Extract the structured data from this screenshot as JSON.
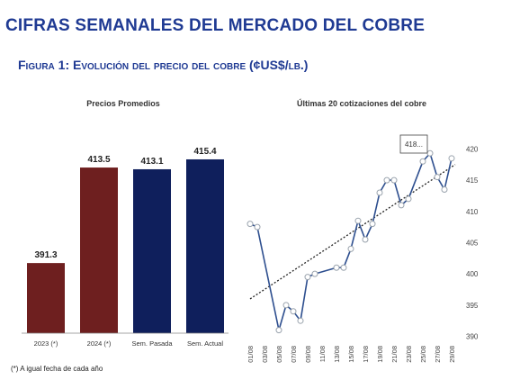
{
  "header": {
    "title": "CIFRAS SEMANALES DEL MERCADO DEL COBRE",
    "figure_caption": "Figura 1: Evolución del precio del cobre (¢US$/lb.)"
  },
  "colors": {
    "title_blue": "#1f3a93",
    "bar_red": "#6e1f1f",
    "bar_navy": "#0f1f5c",
    "line_blue": "#2e4f8f",
    "trend": "#222222"
  },
  "chart_data": [
    {
      "type": "bar",
      "title": "Precios Promedios",
      "categories": [
        "2023 (*)",
        "2024 (*)",
        "Sem. Pasada",
        "Sem. Actual"
      ],
      "values": [
        391.3,
        413.5,
        413.1,
        415.4
      ],
      "value_labels": [
        "391.3",
        "413.5",
        "413.1",
        "415.4"
      ],
      "ylim": [
        375,
        420
      ],
      "bar_colors": [
        "#6e1f1f",
        "#6e1f1f",
        "#0f1f5c",
        "#0f1f5c"
      ],
      "footnote": "(*) A igual fecha de cada año",
      "grid": false
    },
    {
      "type": "line",
      "title": "Últimas 20 cotizaciones del cobre",
      "x": [
        "01/08",
        "02/08",
        "03/08",
        "04/08",
        "05/08",
        "06/08",
        "07/08",
        "08/08",
        "09/08",
        "10/08",
        "11/08",
        "12/08",
        "13/08",
        "14/08",
        "15/08",
        "16/08",
        "17/08",
        "18/08",
        "19/08",
        "20/08",
        "21/08",
        "22/08",
        "23/08",
        "24/08",
        "25/08",
        "26/08",
        "27/08",
        "28/08",
        "29/08",
        "30/08"
      ],
      "x_tick_labels": [
        "01/08",
        "03/08",
        "05/08",
        "07/08",
        "09/08",
        "11/08",
        "13/08",
        "15/08",
        "17/08",
        "19/08",
        "21/08",
        "23/08",
        "25/08",
        "27/08",
        "29/08"
      ],
      "y": [
        408,
        407.5,
        null,
        null,
        391,
        395,
        394,
        392.5,
        399.5,
        400,
        null,
        null,
        401,
        401,
        404,
        408.5,
        405.5,
        408,
        413,
        415,
        415,
        411,
        412,
        null,
        418,
        419.3,
        415.5,
        413.5,
        418.5,
        null
      ],
      "trend_line": {
        "y_start": 396.0,
        "y_end": 417.5
      },
      "callout": "418...",
      "yticks": [
        390,
        395,
        400,
        405,
        410,
        415,
        420
      ],
      "ylim": [
        389.5,
        421.5
      ],
      "grid": false,
      "y_axis_side": "right"
    }
  ]
}
